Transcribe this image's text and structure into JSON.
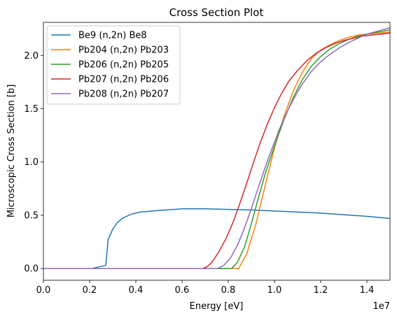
{
  "chart_data": {
    "type": "line",
    "title": "Cross Section Plot",
    "xlabel": "Energy [eV]",
    "ylabel": "Microscopic Cross Section [b]",
    "x_offset_label": "1e7",
    "xlim": [
      0,
      15000000
    ],
    "ylim": [
      -0.11,
      2.31
    ],
    "x_ticks": [
      0,
      2000000,
      4000000,
      6000000,
      8000000,
      10000000,
      12000000,
      14000000
    ],
    "x_tick_labels": [
      "0.0",
      "0.2",
      "0.4",
      "0.6",
      "0.8",
      "1.0",
      "1.2",
      "1.4"
    ],
    "y_ticks": [
      0,
      0.5,
      1.0,
      1.5,
      2.0
    ],
    "y_tick_labels": [
      "0.0",
      "0.5",
      "1.0",
      "1.5",
      "2.0"
    ],
    "grid": false,
    "legend_position": "top-left",
    "series": [
      {
        "name": "Be9 (n,2n) Be8",
        "color": "#1f77b4",
        "x": [
          0,
          2100000,
          2300000,
          2500000,
          2700000,
          2800000,
          3000000,
          3200000,
          3400000,
          3800000,
          4200000,
          5000000,
          6000000,
          7000000,
          8000000,
          9000000,
          10000000,
          11000000,
          12000000,
          13000000,
          14000000,
          15000000
        ],
        "y": [
          0,
          0,
          0.01,
          0.02,
          0.03,
          0.27,
          0.37,
          0.43,
          0.47,
          0.51,
          0.53,
          0.545,
          0.56,
          0.56,
          0.555,
          0.55,
          0.54,
          0.53,
          0.52,
          0.505,
          0.49,
          0.47
        ]
      },
      {
        "name": "Pb204 (n,2n) Pb203",
        "color": "#ff7f0e",
        "x": [
          0,
          8450000,
          8500000,
          8800000,
          9200000,
          9600000,
          10000000,
          10400000,
          10800000,
          11200000,
          11600000,
          12000000,
          12400000,
          12800000,
          13200000,
          13600000,
          14000000,
          14500000,
          15000000
        ],
        "y": [
          0,
          0,
          0.02,
          0.14,
          0.42,
          0.78,
          1.13,
          1.42,
          1.66,
          1.84,
          1.97,
          2.05,
          2.1,
          2.14,
          2.17,
          2.19,
          2.2,
          2.21,
          2.22
        ]
      },
      {
        "name": "Pb206 (n,2n) Pb205",
        "color": "#2ca02c",
        "x": [
          0,
          8150000,
          8400000,
          8700000,
          9000000,
          9300000,
          9600000,
          10000000,
          10400000,
          10800000,
          11200000,
          11600000,
          12000000,
          12400000,
          12800000,
          13200000,
          13600000,
          14000000,
          14500000,
          15000000
        ],
        "y": [
          0,
          0,
          0.06,
          0.2,
          0.42,
          0.66,
          0.89,
          1.15,
          1.39,
          1.6,
          1.77,
          1.9,
          1.99,
          2.06,
          2.11,
          2.15,
          2.18,
          2.2,
          2.22,
          2.24
        ]
      },
      {
        "name": "Pb207 (n,2n) Pb206",
        "color": "#d62728",
        "x": [
          0,
          6900000,
          7100000,
          7300000,
          7600000,
          7900000,
          8200000,
          8500000,
          8800000,
          9100000,
          9400000,
          9700000,
          10000000,
          10300000,
          10600000,
          11000000,
          11400000,
          11800000,
          12200000,
          12600000,
          13000000,
          13400000,
          13800000,
          14200000,
          14600000,
          15000000
        ],
        "y": [
          0,
          0,
          0.02,
          0.06,
          0.16,
          0.28,
          0.43,
          0.61,
          0.8,
          1.0,
          1.19,
          1.36,
          1.51,
          1.64,
          1.75,
          1.86,
          1.95,
          2.02,
          2.07,
          2.11,
          2.14,
          2.16,
          2.18,
          2.19,
          2.2,
          2.21
        ]
      },
      {
        "name": "Pb208 (n,2n) Pb207",
        "color": "#9467bd",
        "x": [
          0,
          7550000,
          7800000,
          8100000,
          8400000,
          8700000,
          9000000,
          9300000,
          9600000,
          9900000,
          10200000,
          10500000,
          10800000,
          11200000,
          11600000,
          12000000,
          12400000,
          12800000,
          13200000,
          13600000,
          14000000,
          14500000,
          15000000
        ],
        "y": [
          0,
          0,
          0.03,
          0.1,
          0.22,
          0.38,
          0.56,
          0.76,
          0.95,
          1.13,
          1.3,
          1.45,
          1.58,
          1.73,
          1.85,
          1.94,
          2.01,
          2.07,
          2.12,
          2.16,
          2.2,
          2.23,
          2.26
        ]
      }
    ]
  }
}
